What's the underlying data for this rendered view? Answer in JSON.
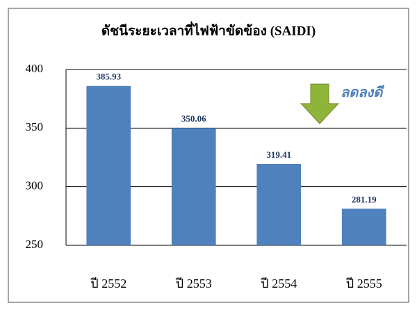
{
  "chart_data": {
    "type": "bar",
    "title": "ดัชนีระยะเวลาที่ไฟฟ้าขัดข้อง (SAIDI)",
    "categories": [
      "ปี 2552",
      "ปี 2553",
      "ปี 2554",
      "ปี 2555"
    ],
    "values": [
      385.93,
      350.06,
      319.41,
      281.19
    ],
    "color": "#4f81bd",
    "ylim": [
      250,
      400
    ],
    "yticks": [
      250,
      300,
      350,
      400
    ],
    "grid": true,
    "annotation": "ลดลงดี"
  }
}
